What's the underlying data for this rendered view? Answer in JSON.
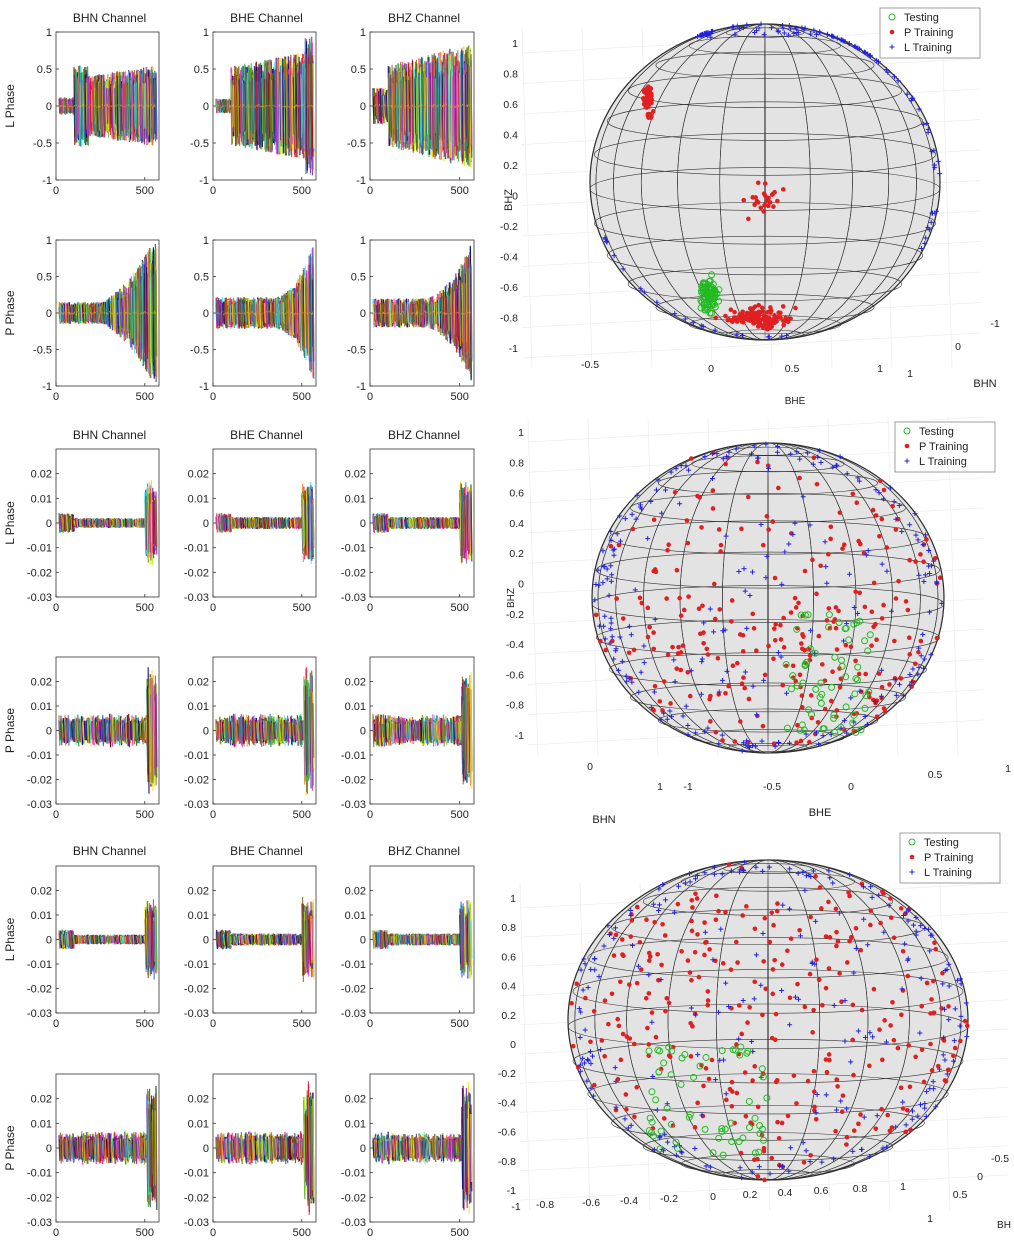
{
  "figure": {
    "channel_titles": [
      "BHN Channel",
      "BHE Channel",
      "BHZ Channel"
    ],
    "row_labels": [
      "L Phase",
      "P Phase"
    ],
    "legend_labels": [
      "Testing",
      "P Training",
      "L Training"
    ],
    "legend_colors": {
      "testing": "#22bb22",
      "p_training": "#e02020",
      "l_training": "#2222dd"
    }
  },
  "chart_data": [
    {
      "type": "line",
      "panel_group": 1,
      "description_of_traces": "many overlapping multicolor waveform traces per panel",
      "xticks": [
        0,
        500
      ],
      "xlim": [
        0,
        580
      ],
      "yticks": [
        -1,
        -0.5,
        0,
        0.5,
        1
      ],
      "ylim": [
        -1,
        1
      ],
      "ytick_labels": [
        "-1",
        "-0.5",
        "0",
        "0.5",
        "1"
      ],
      "rows": [
        "L Phase",
        "P Phase"
      ],
      "columns": [
        "BHN Channel",
        "BHE Channel",
        "BHZ Channel"
      ]
    },
    {
      "type": "line",
      "panel_group": 2,
      "xticks": [
        0,
        500
      ],
      "xlim": [
        0,
        580
      ],
      "yticks": [
        -0.03,
        -0.02,
        -0.01,
        0,
        0.01,
        0.02
      ],
      "ylim": [
        -0.03,
        0.03
      ],
      "ytick_labels": [
        "-0.03",
        "-0.02",
        "-0.01",
        "0",
        "0.01",
        "0.02"
      ],
      "rows": [
        "L Phase",
        "P Phase"
      ],
      "columns": [
        "BHN Channel",
        "BHE Channel",
        "BHZ Channel"
      ]
    },
    {
      "type": "line",
      "panel_group": 3,
      "xticks": [
        0,
        500
      ],
      "xlim": [
        0,
        580
      ],
      "yticks": [
        -0.03,
        -0.02,
        -0.01,
        0,
        0.01,
        0.02
      ],
      "ylim": [
        -0.03,
        0.03
      ],
      "ytick_labels": [
        "-0.03",
        "-0.02",
        "-0.01",
        "0",
        "0.01",
        "0.02"
      ],
      "rows": [
        "L Phase",
        "P Phase"
      ],
      "columns": [
        "BHN Channel",
        "BHE Channel",
        "BHZ Channel"
      ]
    },
    {
      "type": "scatter",
      "panel": "sphere-1",
      "zlabel": "BHZ",
      "xlabel": "BHE",
      "ylabel": "BHN",
      "zticks": [
        "-1",
        "-0.8",
        "-0.6",
        "-0.4",
        "-0.2",
        "0",
        "0.2",
        "0.4",
        "0.6",
        "0.8",
        "1"
      ],
      "xticks": [
        "-0.5",
        "0",
        "0.5",
        "1"
      ],
      "yticks": [
        "-1",
        "0",
        "1"
      ],
      "series": [
        {
          "name": "Testing",
          "marker": "o",
          "cluster": [
            {
              "x": 0.0,
              "y": 0.0,
              "z": -0.75,
              "spread": 0.08,
              "n": 60
            }
          ]
        },
        {
          "name": "P Training",
          "marker": "*",
          "cluster": [
            {
              "x": 0.15,
              "y": 0.0,
              "z": -0.8,
              "spread": 0.15,
              "n": 90
            },
            {
              "x": 0.1,
              "y": 0.0,
              "z": -0.1,
              "spread": 0.12,
              "n": 25
            },
            {
              "x": -0.6,
              "y": 0.0,
              "z": 0.55,
              "spread": 0.04,
              "n": 30
            }
          ]
        },
        {
          "name": "L Training",
          "marker": "+",
          "cluster": [
            {
              "x": 0.3,
              "y": 0.0,
              "z": 0.9,
              "spread": 0.3,
              "n": 60
            },
            {
              "x": 0.95,
              "y": 0.0,
              "z": 0.2,
              "spread": 0.3,
              "n": 40
            }
          ]
        }
      ]
    },
    {
      "type": "scatter",
      "panel": "sphere-2",
      "zlabel": "BHZ",
      "xlabel": "BHE",
      "ylabel": "BHN",
      "zticks": [
        "-1",
        "-0.8",
        "-0.6",
        "-0.4",
        "-0.2",
        "0",
        "0.2",
        "0.4",
        "0.6",
        "0.8",
        "1"
      ],
      "xticks": [
        "-1",
        "-0.5",
        "0",
        "0.5",
        "1"
      ],
      "yticks": [
        "0",
        "1"
      ],
      "series": [
        {
          "name": "Testing",
          "marker": "o",
          "distribution": "lower-right hemisphere"
        },
        {
          "name": "P Training",
          "marker": "*",
          "distribution": "spread over sphere, denser at bottom"
        },
        {
          "name": "L Training",
          "marker": "+",
          "distribution": "spread over sphere, denser at rim"
        }
      ]
    },
    {
      "type": "scatter",
      "panel": "sphere-3",
      "zlabel": "",
      "xlabel": "",
      "ylabel": "BH",
      "zticks": [
        "-1",
        "-0.8",
        "-0.6",
        "-0.4",
        "-0.2",
        "0",
        "0.2",
        "0.4",
        "0.6",
        "0.8",
        "1"
      ],
      "xticks": [
        "-1",
        "-0.8",
        "-0.6",
        "-0.4",
        "-0.2",
        "0",
        "0.2",
        "0.4",
        "0.6",
        "0.8",
        "1"
      ],
      "yticks": [
        "-0.5",
        "0",
        "0.5",
        "1"
      ],
      "series": [
        {
          "name": "Testing",
          "marker": "o",
          "distribution": "lower-left region"
        },
        {
          "name": "P Training",
          "marker": "*",
          "distribution": "spread over sphere"
        },
        {
          "name": "L Training",
          "marker": "+",
          "distribution": "spread over sphere, rim and top"
        }
      ]
    }
  ],
  "sphere_axis_labels": {
    "s1_z": "BHZ",
    "s1_x": "BHE",
    "s1_y": "BHN",
    "s2_z": "BHZ",
    "s2_x": "BHE",
    "s2_y": "BHN",
    "s3_y": "BH"
  }
}
